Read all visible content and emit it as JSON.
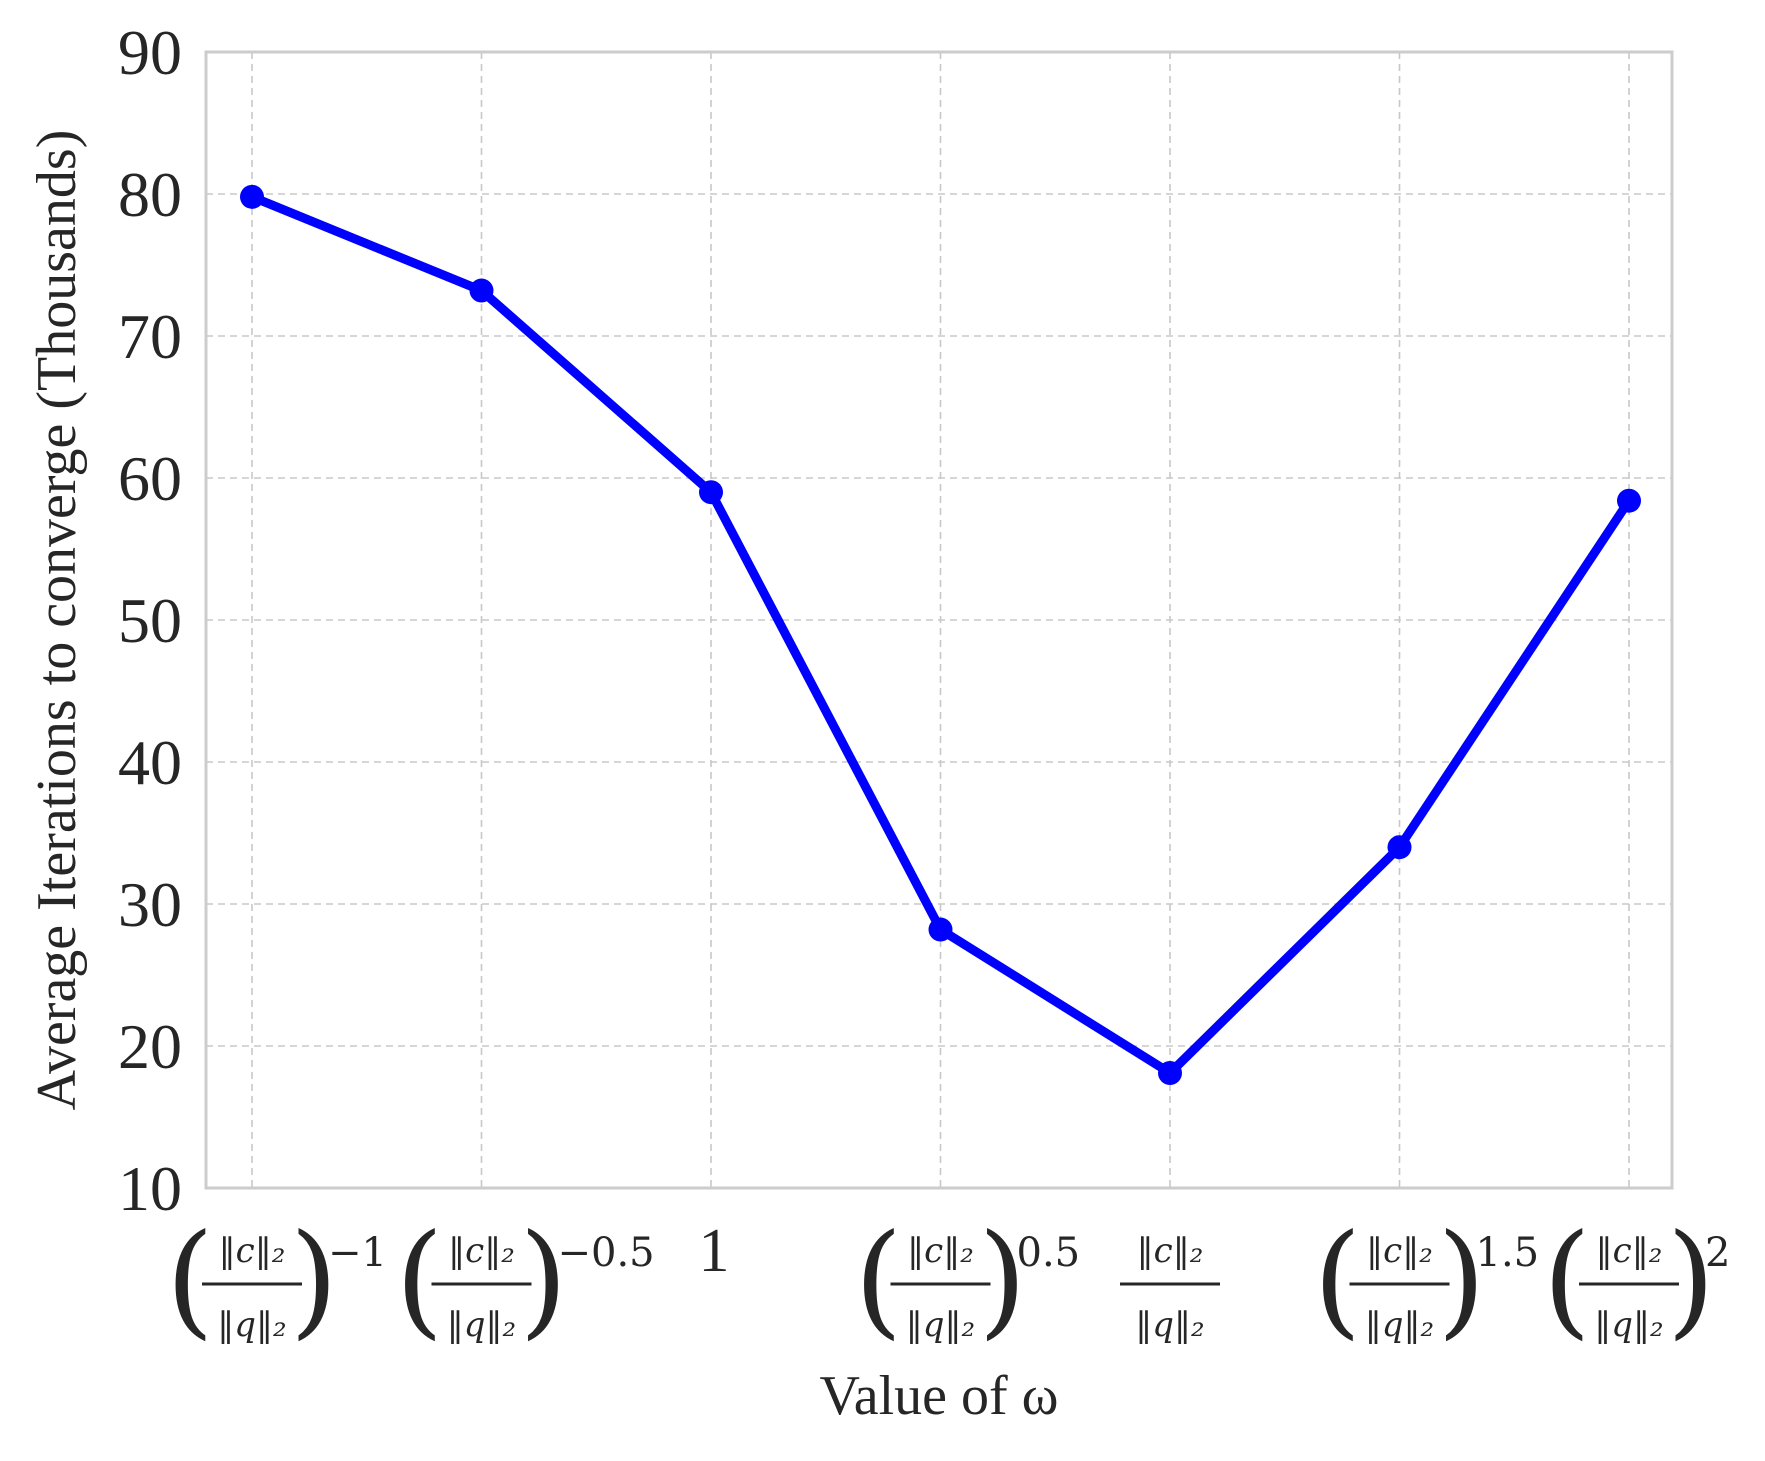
{
  "chart_data": {
    "type": "line",
    "title": "",
    "xlabel": "Value of ω",
    "ylabel": "Average Iterations to converge (Thousands)",
    "ylim": [
      10,
      90
    ],
    "yticks": [
      10,
      20,
      30,
      40,
      50,
      60,
      70,
      80,
      90
    ],
    "grid": true,
    "legend": "none",
    "colors": {
      "line": "#0000ff",
      "grid": "#c8c8c8",
      "frame": "#cccccc",
      "text": "#262626"
    },
    "categories": [
      {
        "kind": "pow",
        "exponent": "−1",
        "num": "‖c‖₂",
        "den": "‖q‖₂"
      },
      {
        "kind": "pow",
        "exponent": "−0.5",
        "num": "‖c‖₂",
        "den": "‖q‖₂"
      },
      {
        "kind": "one",
        "text": "1"
      },
      {
        "kind": "pow",
        "exponent": "0.5",
        "num": "‖c‖₂",
        "den": "‖q‖₂"
      },
      {
        "kind": "frac",
        "num": "‖c‖₂",
        "den": "‖q‖₂"
      },
      {
        "kind": "pow",
        "exponent": "1.5",
        "num": "‖c‖₂",
        "den": "‖q‖₂"
      },
      {
        "kind": "pow",
        "exponent": "2",
        "num": "‖c‖₂",
        "den": "‖q‖₂"
      }
    ],
    "series": [
      {
        "values": [
          79.8,
          73.2,
          59.0,
          28.2,
          18.1,
          34.0,
          58.4
        ]
      }
    ]
  }
}
